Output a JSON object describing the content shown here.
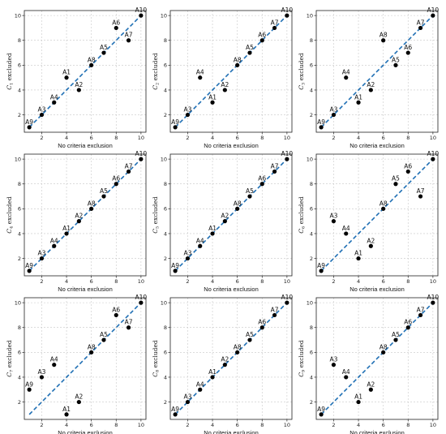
{
  "chart_data": [
    {
      "type": "scatter",
      "xlabel": "No criteria exclusion",
      "ylabel_var": "C",
      "ylabel_sub": "1",
      "ylabel_tail": "excluded",
      "xlim": [
        0.6,
        10.4
      ],
      "ylim": [
        0.6,
        10.4
      ],
      "x_ticks": [
        2,
        4,
        6,
        8,
        10
      ],
      "y_ticks": [
        2,
        4,
        6,
        8,
        10
      ],
      "reference_line": [
        1,
        10
      ],
      "points": [
        {
          "label": "A1",
          "x": 4,
          "y": 5
        },
        {
          "label": "A2",
          "x": 5,
          "y": 4
        },
        {
          "label": "A3",
          "x": 2,
          "y": 2
        },
        {
          "label": "A4",
          "x": 3,
          "y": 3
        },
        {
          "label": "A5",
          "x": 7,
          "y": 7
        },
        {
          "label": "A6",
          "x": 8,
          "y": 9
        },
        {
          "label": "A7",
          "x": 9,
          "y": 8
        },
        {
          "label": "A8",
          "x": 6,
          "y": 6
        },
        {
          "label": "A9",
          "x": 1,
          "y": 1
        },
        {
          "label": "A10",
          "x": 10,
          "y": 10
        }
      ]
    },
    {
      "type": "scatter",
      "xlabel": "No criteria exclusion",
      "ylabel_var": "C",
      "ylabel_sub": "2",
      "ylabel_tail": "excluded",
      "xlim": [
        0.6,
        10.4
      ],
      "ylim": [
        0.6,
        10.4
      ],
      "x_ticks": [
        2,
        4,
        6,
        8,
        10
      ],
      "y_ticks": [
        2,
        4,
        6,
        8,
        10
      ],
      "reference_line": [
        1,
        10
      ],
      "points": [
        {
          "label": "A1",
          "x": 4,
          "y": 3
        },
        {
          "label": "A2",
          "x": 5,
          "y": 4
        },
        {
          "label": "A3",
          "x": 2,
          "y": 2
        },
        {
          "label": "A4",
          "x": 3,
          "y": 5
        },
        {
          "label": "A5",
          "x": 7,
          "y": 7
        },
        {
          "label": "A6",
          "x": 8,
          "y": 8
        },
        {
          "label": "A7",
          "x": 9,
          "y": 9
        },
        {
          "label": "A8",
          "x": 6,
          "y": 6
        },
        {
          "label": "A9",
          "x": 1,
          "y": 1
        },
        {
          "label": "A10",
          "x": 10,
          "y": 10
        }
      ]
    },
    {
      "type": "scatter",
      "xlabel": "No criteria exclusion",
      "ylabel_var": "C",
      "ylabel_sub": "3",
      "ylabel_tail": "excluded",
      "xlim": [
        0.6,
        10.4
      ],
      "ylim": [
        0.6,
        10.4
      ],
      "x_ticks": [
        2,
        4,
        6,
        8,
        10
      ],
      "y_ticks": [
        2,
        4,
        6,
        8,
        10
      ],
      "reference_line": [
        1,
        10
      ],
      "points": [
        {
          "label": "A1",
          "x": 4,
          "y": 3
        },
        {
          "label": "A2",
          "x": 5,
          "y": 4
        },
        {
          "label": "A3",
          "x": 2,
          "y": 2
        },
        {
          "label": "A4",
          "x": 3,
          "y": 5
        },
        {
          "label": "A5",
          "x": 7,
          "y": 6
        },
        {
          "label": "A6",
          "x": 8,
          "y": 7
        },
        {
          "label": "A7",
          "x": 9,
          "y": 9
        },
        {
          "label": "A8",
          "x": 6,
          "y": 8
        },
        {
          "label": "A9",
          "x": 1,
          "y": 1
        },
        {
          "label": "A10",
          "x": 10,
          "y": 10
        }
      ]
    },
    {
      "type": "scatter",
      "xlabel": "No criteria exclusion",
      "ylabel_var": "C",
      "ylabel_sub": "4",
      "ylabel_tail": "excluded",
      "xlim": [
        0.6,
        10.4
      ],
      "ylim": [
        0.6,
        10.4
      ],
      "x_ticks": [
        2,
        4,
        6,
        8,
        10
      ],
      "y_ticks": [
        2,
        4,
        6,
        8,
        10
      ],
      "reference_line": [
        1,
        10
      ],
      "points": [
        {
          "label": "A1",
          "x": 4,
          "y": 4
        },
        {
          "label": "A2",
          "x": 5,
          "y": 5
        },
        {
          "label": "A3",
          "x": 2,
          "y": 2
        },
        {
          "label": "A4",
          "x": 3,
          "y": 3
        },
        {
          "label": "A5",
          "x": 7,
          "y": 7
        },
        {
          "label": "A6",
          "x": 8,
          "y": 8
        },
        {
          "label": "A7",
          "x": 9,
          "y": 9
        },
        {
          "label": "A8",
          "x": 6,
          "y": 6
        },
        {
          "label": "A9",
          "x": 1,
          "y": 1
        },
        {
          "label": "A10",
          "x": 10,
          "y": 10
        }
      ]
    },
    {
      "type": "scatter",
      "xlabel": "No criteria exclusion",
      "ylabel_var": "C",
      "ylabel_sub": "5",
      "ylabel_tail": "excluded",
      "xlim": [
        0.6,
        10.4
      ],
      "ylim": [
        0.6,
        10.4
      ],
      "x_ticks": [
        2,
        4,
        6,
        8,
        10
      ],
      "y_ticks": [
        2,
        4,
        6,
        8,
        10
      ],
      "reference_line": [
        1,
        10
      ],
      "points": [
        {
          "label": "A1",
          "x": 4,
          "y": 4
        },
        {
          "label": "A2",
          "x": 5,
          "y": 5
        },
        {
          "label": "A3",
          "x": 2,
          "y": 2
        },
        {
          "label": "A4",
          "x": 3,
          "y": 3
        },
        {
          "label": "A5",
          "x": 7,
          "y": 7
        },
        {
          "label": "A6",
          "x": 8,
          "y": 8
        },
        {
          "label": "A7",
          "x": 9,
          "y": 9
        },
        {
          "label": "A8",
          "x": 6,
          "y": 6
        },
        {
          "label": "A9",
          "x": 1,
          "y": 1
        },
        {
          "label": "A10",
          "x": 10,
          "y": 10
        }
      ]
    },
    {
      "type": "scatter",
      "xlabel": "No criteria exclusion",
      "ylabel_var": "C",
      "ylabel_sub": "6",
      "ylabel_tail": "excluded",
      "xlim": [
        0.6,
        10.4
      ],
      "ylim": [
        0.6,
        10.4
      ],
      "x_ticks": [
        2,
        4,
        6,
        8,
        10
      ],
      "y_ticks": [
        2,
        4,
        6,
        8,
        10
      ],
      "reference_line": [
        1,
        10
      ],
      "points": [
        {
          "label": "A1",
          "x": 4,
          "y": 2
        },
        {
          "label": "A2",
          "x": 5,
          "y": 3
        },
        {
          "label": "A3",
          "x": 2,
          "y": 5
        },
        {
          "label": "A4",
          "x": 3,
          "y": 4
        },
        {
          "label": "A5",
          "x": 7,
          "y": 8
        },
        {
          "label": "A6",
          "x": 8,
          "y": 9
        },
        {
          "label": "A7",
          "x": 9,
          "y": 7
        },
        {
          "label": "A8",
          "x": 6,
          "y": 6
        },
        {
          "label": "A9",
          "x": 1,
          "y": 1
        },
        {
          "label": "A10",
          "x": 10,
          "y": 10
        }
      ]
    },
    {
      "type": "scatter",
      "xlabel": "No criteria exclusion",
      "ylabel_var": "C",
      "ylabel_sub": "7",
      "ylabel_tail": "excluded",
      "xlim": [
        0.6,
        10.4
      ],
      "ylim": [
        0.6,
        10.4
      ],
      "x_ticks": [
        2,
        4,
        6,
        8,
        10
      ],
      "y_ticks": [
        2,
        4,
        6,
        8,
        10
      ],
      "reference_line": [
        1,
        10
      ],
      "points": [
        {
          "label": "A1",
          "x": 4,
          "y": 1
        },
        {
          "label": "A2",
          "x": 5,
          "y": 2
        },
        {
          "label": "A3",
          "x": 2,
          "y": 4
        },
        {
          "label": "A4",
          "x": 3,
          "y": 5
        },
        {
          "label": "A5",
          "x": 7,
          "y": 7
        },
        {
          "label": "A6",
          "x": 8,
          "y": 9
        },
        {
          "label": "A7",
          "x": 9,
          "y": 8
        },
        {
          "label": "A8",
          "x": 6,
          "y": 6
        },
        {
          "label": "A9",
          "x": 1,
          "y": 3
        },
        {
          "label": "A10",
          "x": 10,
          "y": 10
        }
      ]
    },
    {
      "type": "scatter",
      "xlabel": "No criteria exclusion",
      "ylabel_var": "C",
      "ylabel_sub": "8",
      "ylabel_tail": "excluded",
      "xlim": [
        0.6,
        10.4
      ],
      "ylim": [
        0.6,
        10.4
      ],
      "x_ticks": [
        2,
        4,
        6,
        8,
        10
      ],
      "y_ticks": [
        2,
        4,
        6,
        8,
        10
      ],
      "reference_line": [
        1,
        10
      ],
      "points": [
        {
          "label": "A1",
          "x": 4,
          "y": 4
        },
        {
          "label": "A2",
          "x": 5,
          "y": 5
        },
        {
          "label": "A3",
          "x": 2,
          "y": 2
        },
        {
          "label": "A4",
          "x": 3,
          "y": 3
        },
        {
          "label": "A5",
          "x": 7,
          "y": 7
        },
        {
          "label": "A6",
          "x": 8,
          "y": 8
        },
        {
          "label": "A7",
          "x": 9,
          "y": 9
        },
        {
          "label": "A8",
          "x": 6,
          "y": 6
        },
        {
          "label": "A9",
          "x": 1,
          "y": 1
        },
        {
          "label": "A10",
          "x": 10,
          "y": 10
        }
      ]
    },
    {
      "type": "scatter",
      "xlabel": "No criteria exclusion",
      "ylabel_var": "C",
      "ylabel_sub": "9",
      "ylabel_tail": "excluded",
      "xlim": [
        0.6,
        10.4
      ],
      "ylim": [
        0.6,
        10.4
      ],
      "x_ticks": [
        2,
        4,
        6,
        8,
        10
      ],
      "y_ticks": [
        2,
        4,
        6,
        8,
        10
      ],
      "reference_line": [
        1,
        10
      ],
      "points": [
        {
          "label": "A1",
          "x": 4,
          "y": 2
        },
        {
          "label": "A2",
          "x": 5,
          "y": 3
        },
        {
          "label": "A3",
          "x": 2,
          "y": 5
        },
        {
          "label": "A4",
          "x": 3,
          "y": 4
        },
        {
          "label": "A5",
          "x": 7,
          "y": 7
        },
        {
          "label": "A6",
          "x": 8,
          "y": 8
        },
        {
          "label": "A7",
          "x": 9,
          "y": 9
        },
        {
          "label": "A8",
          "x": 6,
          "y": 6
        },
        {
          "label": "A9",
          "x": 1,
          "y": 1
        },
        {
          "label": "A10",
          "x": 10,
          "y": 10
        }
      ]
    }
  ],
  "colors": {
    "reference_line": "#1f6fb4",
    "points": "#000000",
    "grid": "#c8c8c8"
  }
}
